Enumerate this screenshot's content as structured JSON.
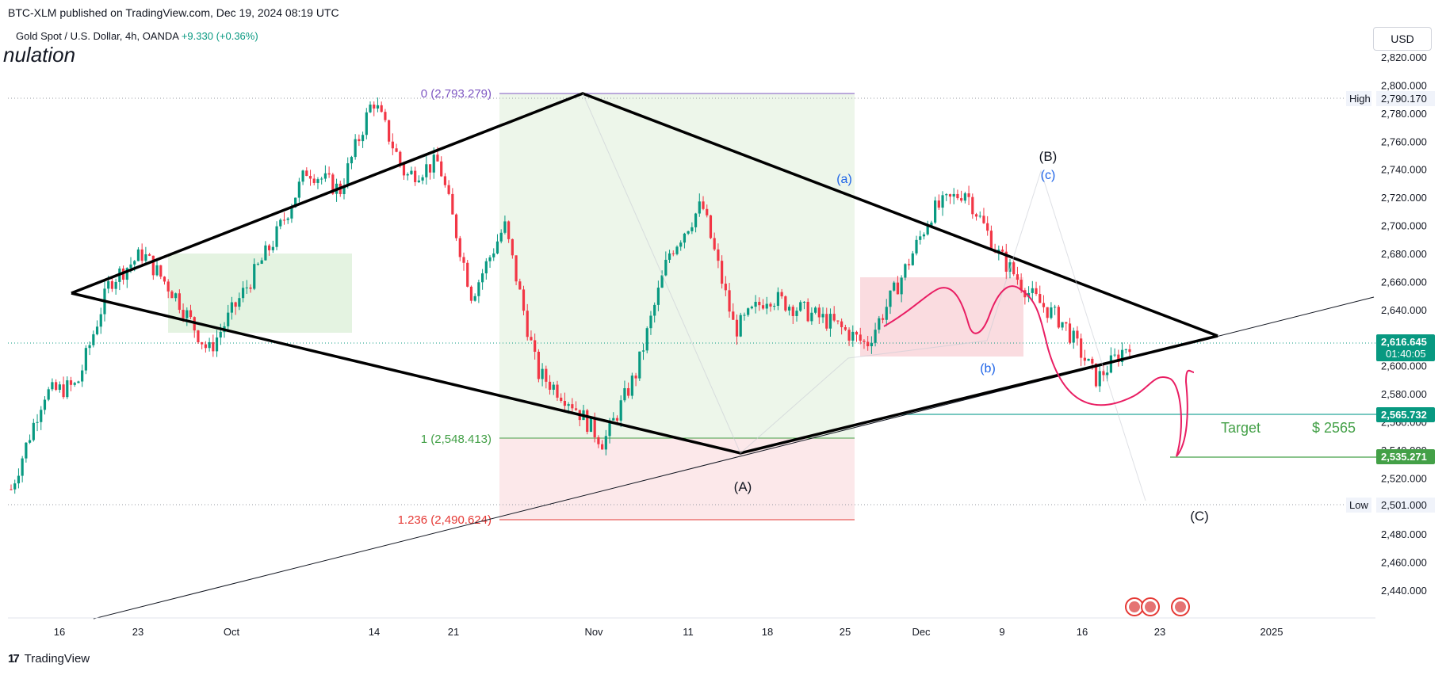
{
  "header": {
    "published": "BTC-XLM published on TradingView.com, Dec 19, 2024 08:19 UTC",
    "symbol": "Gold Spot / U.S. Dollar, 4h, OANDA",
    "change": "+9.330 (+0.36%)",
    "study_title": "nulation",
    "currency": "USD"
  },
  "footer": {
    "brand": "TradingView",
    "mark": "17"
  },
  "colors": {
    "up": "#089981",
    "down": "#f23645",
    "fib_top": "#7e57c2",
    "fib_one": "#43a047",
    "fib_ext": "#e53935",
    "wave_label": "#1e64e8",
    "target": "#43a047",
    "price_tag": "#089981"
  },
  "chart_data": {
    "type": "candlestick",
    "title": "Gold Spot / U.S. Dollar, 4h, OANDA",
    "x_ticks": [
      "16",
      "23",
      "Oct",
      "14",
      "21",
      "Nov",
      "11",
      "18",
      "25",
      "Dec",
      "9",
      "16",
      "23",
      "2025"
    ],
    "y_ticks": [
      "2,820.000",
      "2,800.000",
      "2,780.000",
      "2,760.000",
      "2,740.000",
      "2,720.000",
      "2,700.000",
      "2,680.000",
      "2,660.000",
      "2,640.000",
      "2,620.000",
      "2,600.000",
      "2,580.000",
      "2,560.000",
      "2,540.000",
      "2,520.000",
      "2,500.000",
      "2,480.000",
      "2,460.000",
      "2,440.000"
    ],
    "ylim": [
      2430,
      2830
    ],
    "price_path": [
      [
        "Sep 12",
        2512
      ],
      [
        "Sep 16",
        2580
      ],
      [
        "Sep 20",
        2586
      ],
      [
        "Sep 24",
        2660
      ],
      [
        "Sep 26",
        2680
      ],
      [
        "Oct 4",
        2650
      ],
      [
        "Oct 10",
        2610
      ],
      [
        "Oct 14",
        2650
      ],
      [
        "Oct 18",
        2690
      ],
      [
        "Oct 22",
        2740
      ],
      [
        "Oct 24",
        2725
      ],
      [
        "Oct 30",
        2790
      ],
      [
        "Nov 1",
        2735
      ],
      [
        "Nov 5",
        2745
      ],
      [
        "Nov 7",
        2650
      ],
      [
        "Nov 9",
        2700
      ],
      [
        "Nov 12",
        2595
      ],
      [
        "Nov 14",
        2575
      ],
      [
        "Nov 15",
        2545
      ],
      [
        "Nov 18",
        2595
      ],
      [
        "Nov 22",
        2680
      ],
      [
        "Nov 25",
        2715
      ],
      [
        "Nov 26",
        2625
      ],
      [
        "Nov 28",
        2650
      ],
      [
        "Dec 2",
        2640
      ],
      [
        "Dec 5",
        2630
      ],
      [
        "Dec 6",
        2615
      ],
      [
        "Dec 9",
        2660
      ],
      [
        "Dec 11",
        2710
      ],
      [
        "Dec 12",
        2725
      ],
      [
        "Dec 14",
        2680
      ],
      [
        "Dec 16",
        2650
      ],
      [
        "Dec 18",
        2630
      ],
      [
        "Dec 19",
        2590
      ],
      [
        "Dec 19",
        2616.645
      ]
    ],
    "last_price": "2,616.645",
    "countdown": "01:40:05",
    "high": {
      "label": "High",
      "value": "2,790.170"
    },
    "low": {
      "label": "Low",
      "value": "2,501.000"
    },
    "price_levels": [
      "2,565.732",
      "2,535.271"
    ],
    "fib_levels": [
      {
        "label": "0 (2,793.279)",
        "value": 2793.279
      },
      {
        "label": "1 (2,548.413)",
        "value": 2548.413
      },
      {
        "label": "1.236 (2,490.624)",
        "value": 2490.624
      }
    ],
    "wave_labels": [
      "(A)",
      "(B)",
      "(C)",
      "(a)",
      "(b)",
      "(c)"
    ],
    "target": {
      "label": "Target",
      "value": "$ 2565"
    },
    "events_count": 3
  }
}
